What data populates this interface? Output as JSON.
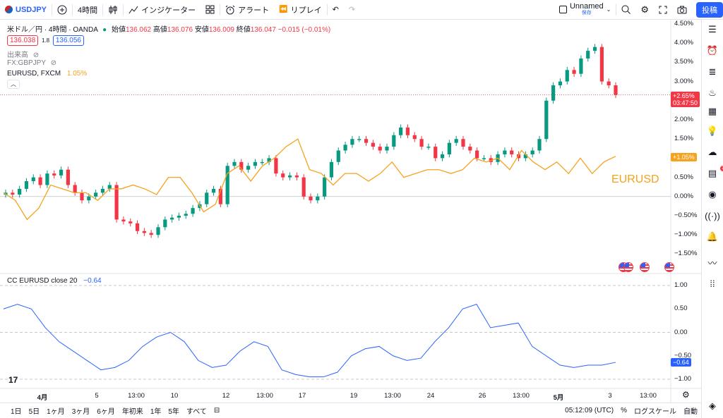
{
  "topbar": {
    "symbol": "USDJPY",
    "add_icon": "plus-circle-icon",
    "interval": "4時間",
    "chart_type_icon": "candles-icon",
    "indicators_label": "インジケーター",
    "alert_label": "アラート",
    "replay_label": "リプレイ",
    "layout_name": "Unnamed",
    "layout_status": "保存",
    "post_label": "投稿"
  },
  "legend": {
    "main_title": "米ドル／円 · 4時間 · OANDA",
    "ohlc": {
      "open_label": "始値",
      "open": "136.062",
      "high_label": "高値",
      "high": "136.076",
      "low_label": "安値",
      "low": "136.009",
      "close_label": "終値",
      "close": "136.047",
      "change": "−0.015 (−0.01%)"
    },
    "bid": "136.038",
    "spread": "1.8",
    "ask": "136.056",
    "volume_label": "出来高",
    "fx_gbpjpy": "FX:GBPJPY",
    "eurusd_label": "EURUSD, FXCM",
    "eurusd_value": "1.05%",
    "cc_label": "CC EURUSD close 20",
    "cc_value": "−0.64"
  },
  "main_axis": [
    "4.50%",
    "4.00%",
    "3.50%",
    "3.00%",
    "2.50%",
    "2.00%",
    "1.50%",
    "1.00%",
    "0.50%",
    "0.00%",
    "−0.50%",
    "−1.00%",
    "−1.50%"
  ],
  "main_tags": {
    "price_pct": "+2.65%",
    "countdown": "03:47:50",
    "eurusd_pct": "+1.05%"
  },
  "eurusd_overlay_label": "EURUSD",
  "cc_axis": [
    "1.00",
    "0.50",
    "0.00",
    "−0.50",
    "−1.00"
  ],
  "cc_tag": "−0.64",
  "time_axis": [
    "4月",
    "5",
    "13:00",
    "10",
    "12",
    "13:00",
    "17",
    "19",
    "13:00",
    "24",
    "26",
    "13:00",
    "5月",
    "3",
    "13:00"
  ],
  "bottombar": {
    "ranges": [
      "1日",
      "5日",
      "1ヶ月",
      "3ヶ月",
      "6ヶ月",
      "年初来",
      "1年",
      "5年",
      "すべて"
    ],
    "time": "05:12:09 (UTC)",
    "percent": "%",
    "log": "ログスケール",
    "auto": "自動"
  },
  "right_sidebar_icons": [
    "watchlist-icon",
    "alarm-icon",
    "news-icon",
    "fire-icon",
    "calendar-icon",
    "idea-icon",
    "chat-icon",
    "messages-icon",
    "signal-icon",
    "broadcast-icon",
    "bell-icon",
    "trend-icon",
    "apps-icon",
    "layers-icon"
  ],
  "messages_badge": "2",
  "colors": {
    "up": "#089981",
    "down": "#f23645",
    "overlay": "#f7a21b",
    "cc": "#2962ff",
    "accent": "#2962ff"
  },
  "chart_data": {
    "type": "line",
    "title": "米ドル／円 · 4時間 · OANDA",
    "y_unit": "%",
    "ylim": [
      -1.8,
      4.6
    ],
    "series": [
      {
        "name": "USDJPY",
        "kind": "candlestick",
        "values": [
          0.1,
          0.05,
          0.2,
          0.4,
          0.5,
          0.3,
          0.6,
          0.55,
          0.7,
          0.3,
          0.1,
          -0.1,
          0.0,
          0.1,
          0.2,
          0.3,
          -0.6,
          -0.65,
          -0.7,
          -0.9,
          -0.95,
          -1.0,
          -0.8,
          -0.6,
          -0.55,
          -0.5,
          -0.45,
          -0.3,
          -0.2,
          0.1,
          0.2,
          -0.2,
          0.8,
          0.9,
          0.7,
          0.8,
          0.9,
          0.9,
          1.0,
          0.6,
          0.5,
          0.55,
          0.5,
          0.0,
          -0.1,
          0.0,
          0.5,
          0.9,
          1.2,
          1.35,
          1.5,
          1.5,
          1.4,
          1.3,
          1.2,
          1.3,
          1.6,
          1.8,
          1.6,
          1.5,
          1.3,
          1.3,
          1.0,
          1.1,
          1.4,
          1.5,
          1.3,
          1.2,
          1.0,
          1.0,
          0.9,
          1.1,
          1.2,
          1.1,
          1.0,
          1.1,
          1.2,
          1.5,
          2.5,
          2.9,
          3.0,
          3.3,
          3.2,
          3.6,
          3.8,
          3.9,
          3.0,
          2.9,
          2.65
        ]
      },
      {
        "name": "EURUSD",
        "values": [
          0.1,
          -0.1,
          -0.6,
          -0.3,
          0.3,
          0.2,
          0.1,
          0.1,
          -0.1,
          0.2,
          0.2,
          0.3,
          0.2,
          0.05,
          0.5,
          0.5,
          0.1,
          -0.4,
          -0.2,
          0.6,
          0.8,
          0.4,
          0.8,
          1.0,
          1.3,
          1.5,
          0.7,
          0.6,
          0.3,
          0.6,
          0.6,
          0.4,
          0.6,
          0.9,
          0.5,
          0.6,
          0.7,
          0.7,
          0.6,
          0.7,
          1.0,
          0.9,
          1.0,
          0.7,
          1.2,
          0.9,
          0.7,
          0.9,
          0.6,
          1.0,
          0.6,
          0.9,
          1.05
        ]
      },
      {
        "name": "CC EURUSD close 20",
        "values": [
          0.5,
          0.6,
          0.5,
          0.1,
          -0.2,
          -0.4,
          -0.6,
          -0.8,
          -0.75,
          -0.6,
          -0.3,
          -0.1,
          0.0,
          -0.2,
          -0.6,
          -0.75,
          -0.7,
          -0.4,
          -0.2,
          -0.3,
          -0.8,
          -0.9,
          -0.95,
          -0.95,
          -0.85,
          -0.5,
          -0.35,
          -0.3,
          -0.5,
          -0.6,
          -0.55,
          -0.2,
          0.1,
          0.5,
          0.6,
          0.1,
          0.15,
          0.2,
          -0.3,
          -0.5,
          -0.7,
          -0.75,
          -0.7,
          -0.7,
          -0.64
        ]
      }
    ],
    "cc_ylim": [
      -1.0,
      1.0
    ]
  }
}
